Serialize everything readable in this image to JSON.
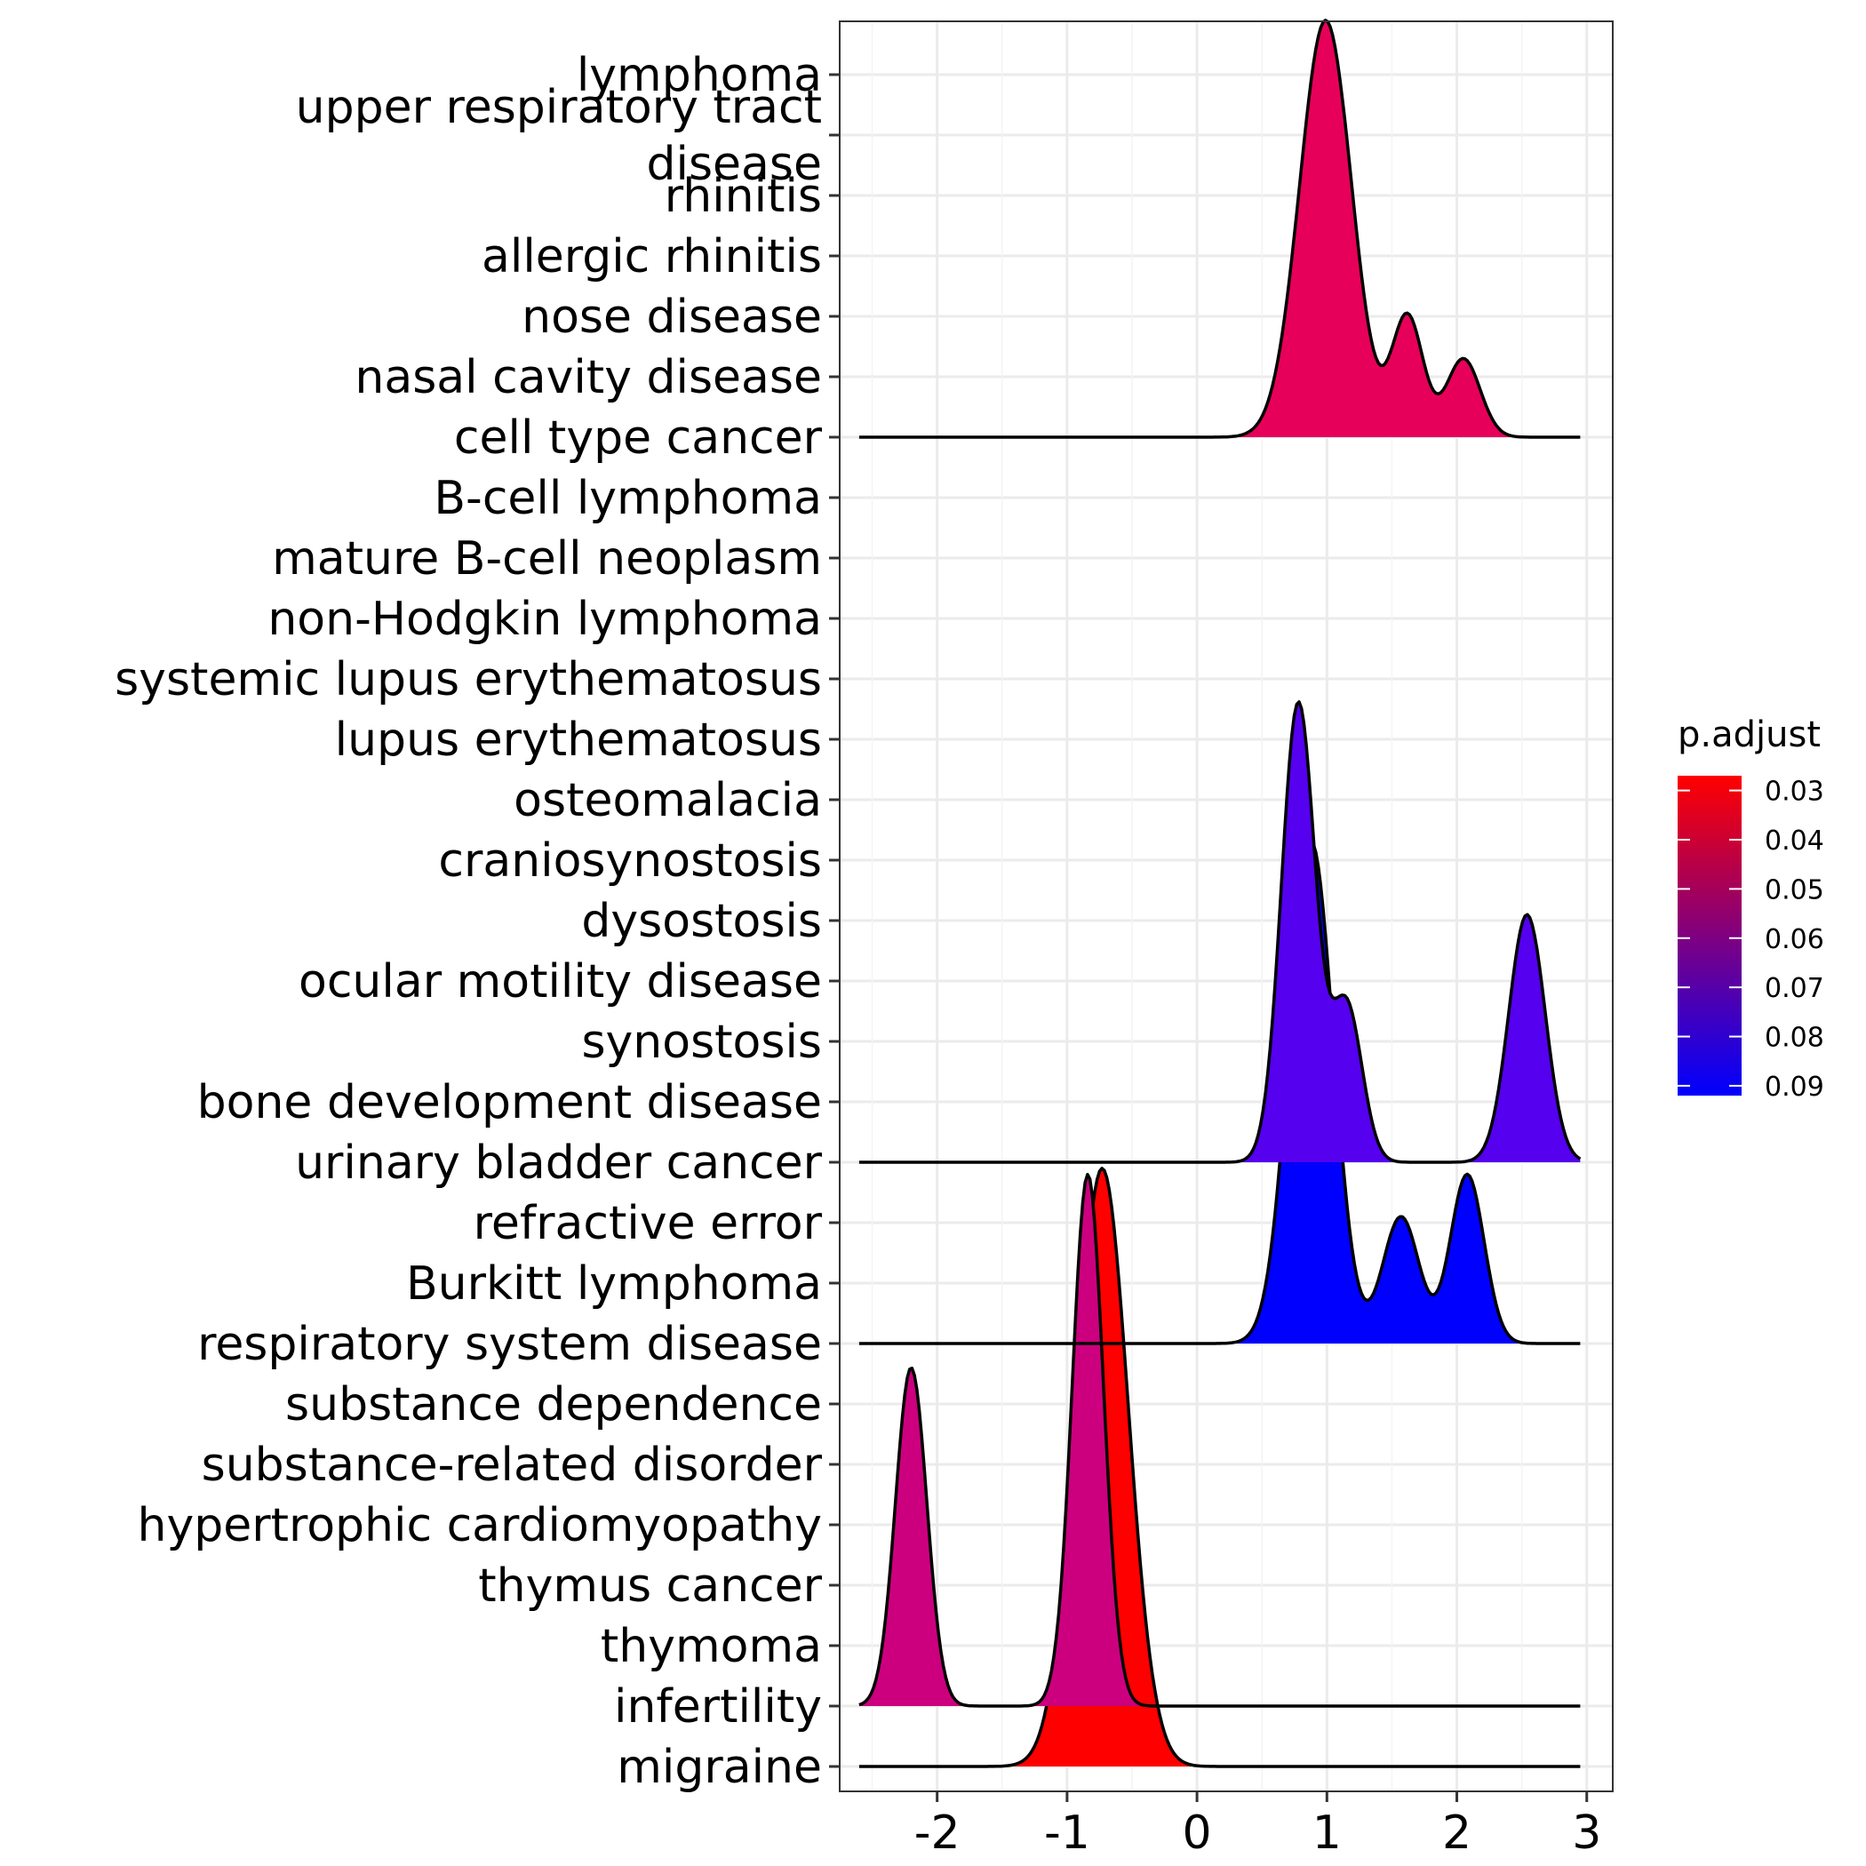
{
  "chart_data": {
    "type": "ridgeline",
    "x_ticks": [
      -2,
      -1,
      0,
      1,
      2,
      3
    ],
    "xlim": [
      -2.75,
      3.2
    ],
    "y_categories": [
      "lymphoma",
      "upper respiratory tract\ndisease",
      "rhinitis",
      "allergic rhinitis",
      "nose disease",
      "nasal cavity disease",
      "cell type cancer",
      "B-cell lymphoma",
      "mature B-cell neoplasm",
      "non-Hodgkin lymphoma",
      "systemic lupus erythematosus",
      "lupus erythematosus",
      "osteomalacia",
      "craniosynostosis",
      "dysostosis",
      "ocular motility disease",
      "synostosis",
      "bone development disease",
      "urinary bladder cancer",
      "refractive error",
      "Burkitt lymphoma",
      "respiratory system disease",
      "substance dependence",
      "substance-related disorder",
      "hypertrophic cardiomyopathy",
      "thymus cancer",
      "thymoma",
      "infertility",
      "migraine"
    ],
    "density_range": [
      -2.6,
      2.95
    ],
    "ridges": [
      {
        "baseline": "migraine",
        "p_adjust": 0.028,
        "color": "#FF0000",
        "peaks": [
          {
            "mean": -0.73,
            "sd": 0.2,
            "height": 9.9
          }
        ]
      },
      {
        "baseline": "infertility",
        "p_adjust": 0.06,
        "color": "#CC007F",
        "peaks": [
          {
            "mean": -2.2,
            "sd": 0.12,
            "height": 5.6
          },
          {
            "mean": -0.84,
            "sd": 0.12,
            "height": 8.8
          }
        ]
      },
      {
        "baseline": "respiratory system disease",
        "p_adjust": 0.091,
        "color": "#0000FF",
        "peaks": [
          {
            "mean": 0.88,
            "sd": 0.17,
            "height": 8.3
          },
          {
            "mean": 1.57,
            "sd": 0.14,
            "height": 2.1
          },
          {
            "mean": 2.08,
            "sd": 0.13,
            "height": 2.8
          }
        ]
      },
      {
        "baseline": "urinary bladder cancer",
        "p_adjust": 0.085,
        "color": "#5500EE",
        "peaks": [
          {
            "mean": 0.78,
            "sd": 0.13,
            "height": 7.6
          },
          {
            "mean": 1.15,
            "sd": 0.12,
            "height": 2.6
          },
          {
            "mean": 2.54,
            "sd": 0.14,
            "height": 4.1
          }
        ]
      },
      {
        "baseline": "cell type cancer",
        "p_adjust": 0.047,
        "color": "#E6005A",
        "peaks": [
          {
            "mean": 0.99,
            "sd": 0.2,
            "height": 6.9
          },
          {
            "mean": 1.62,
            "sd": 0.12,
            "height": 2.0
          },
          {
            "mean": 2.05,
            "sd": 0.13,
            "height": 1.3
          }
        ]
      }
    ],
    "legend": {
      "title": "p.adjust",
      "position": "right",
      "ticks": [
        "0.03",
        "0.04",
        "0.05",
        "0.06",
        "0.07",
        "0.08",
        "0.09"
      ],
      "range": [
        0.027,
        0.092
      ],
      "low_color": "#FF0000",
      "high_color": "#0000FF"
    },
    "grid": true,
    "xlabel": "",
    "ylabel": ""
  }
}
